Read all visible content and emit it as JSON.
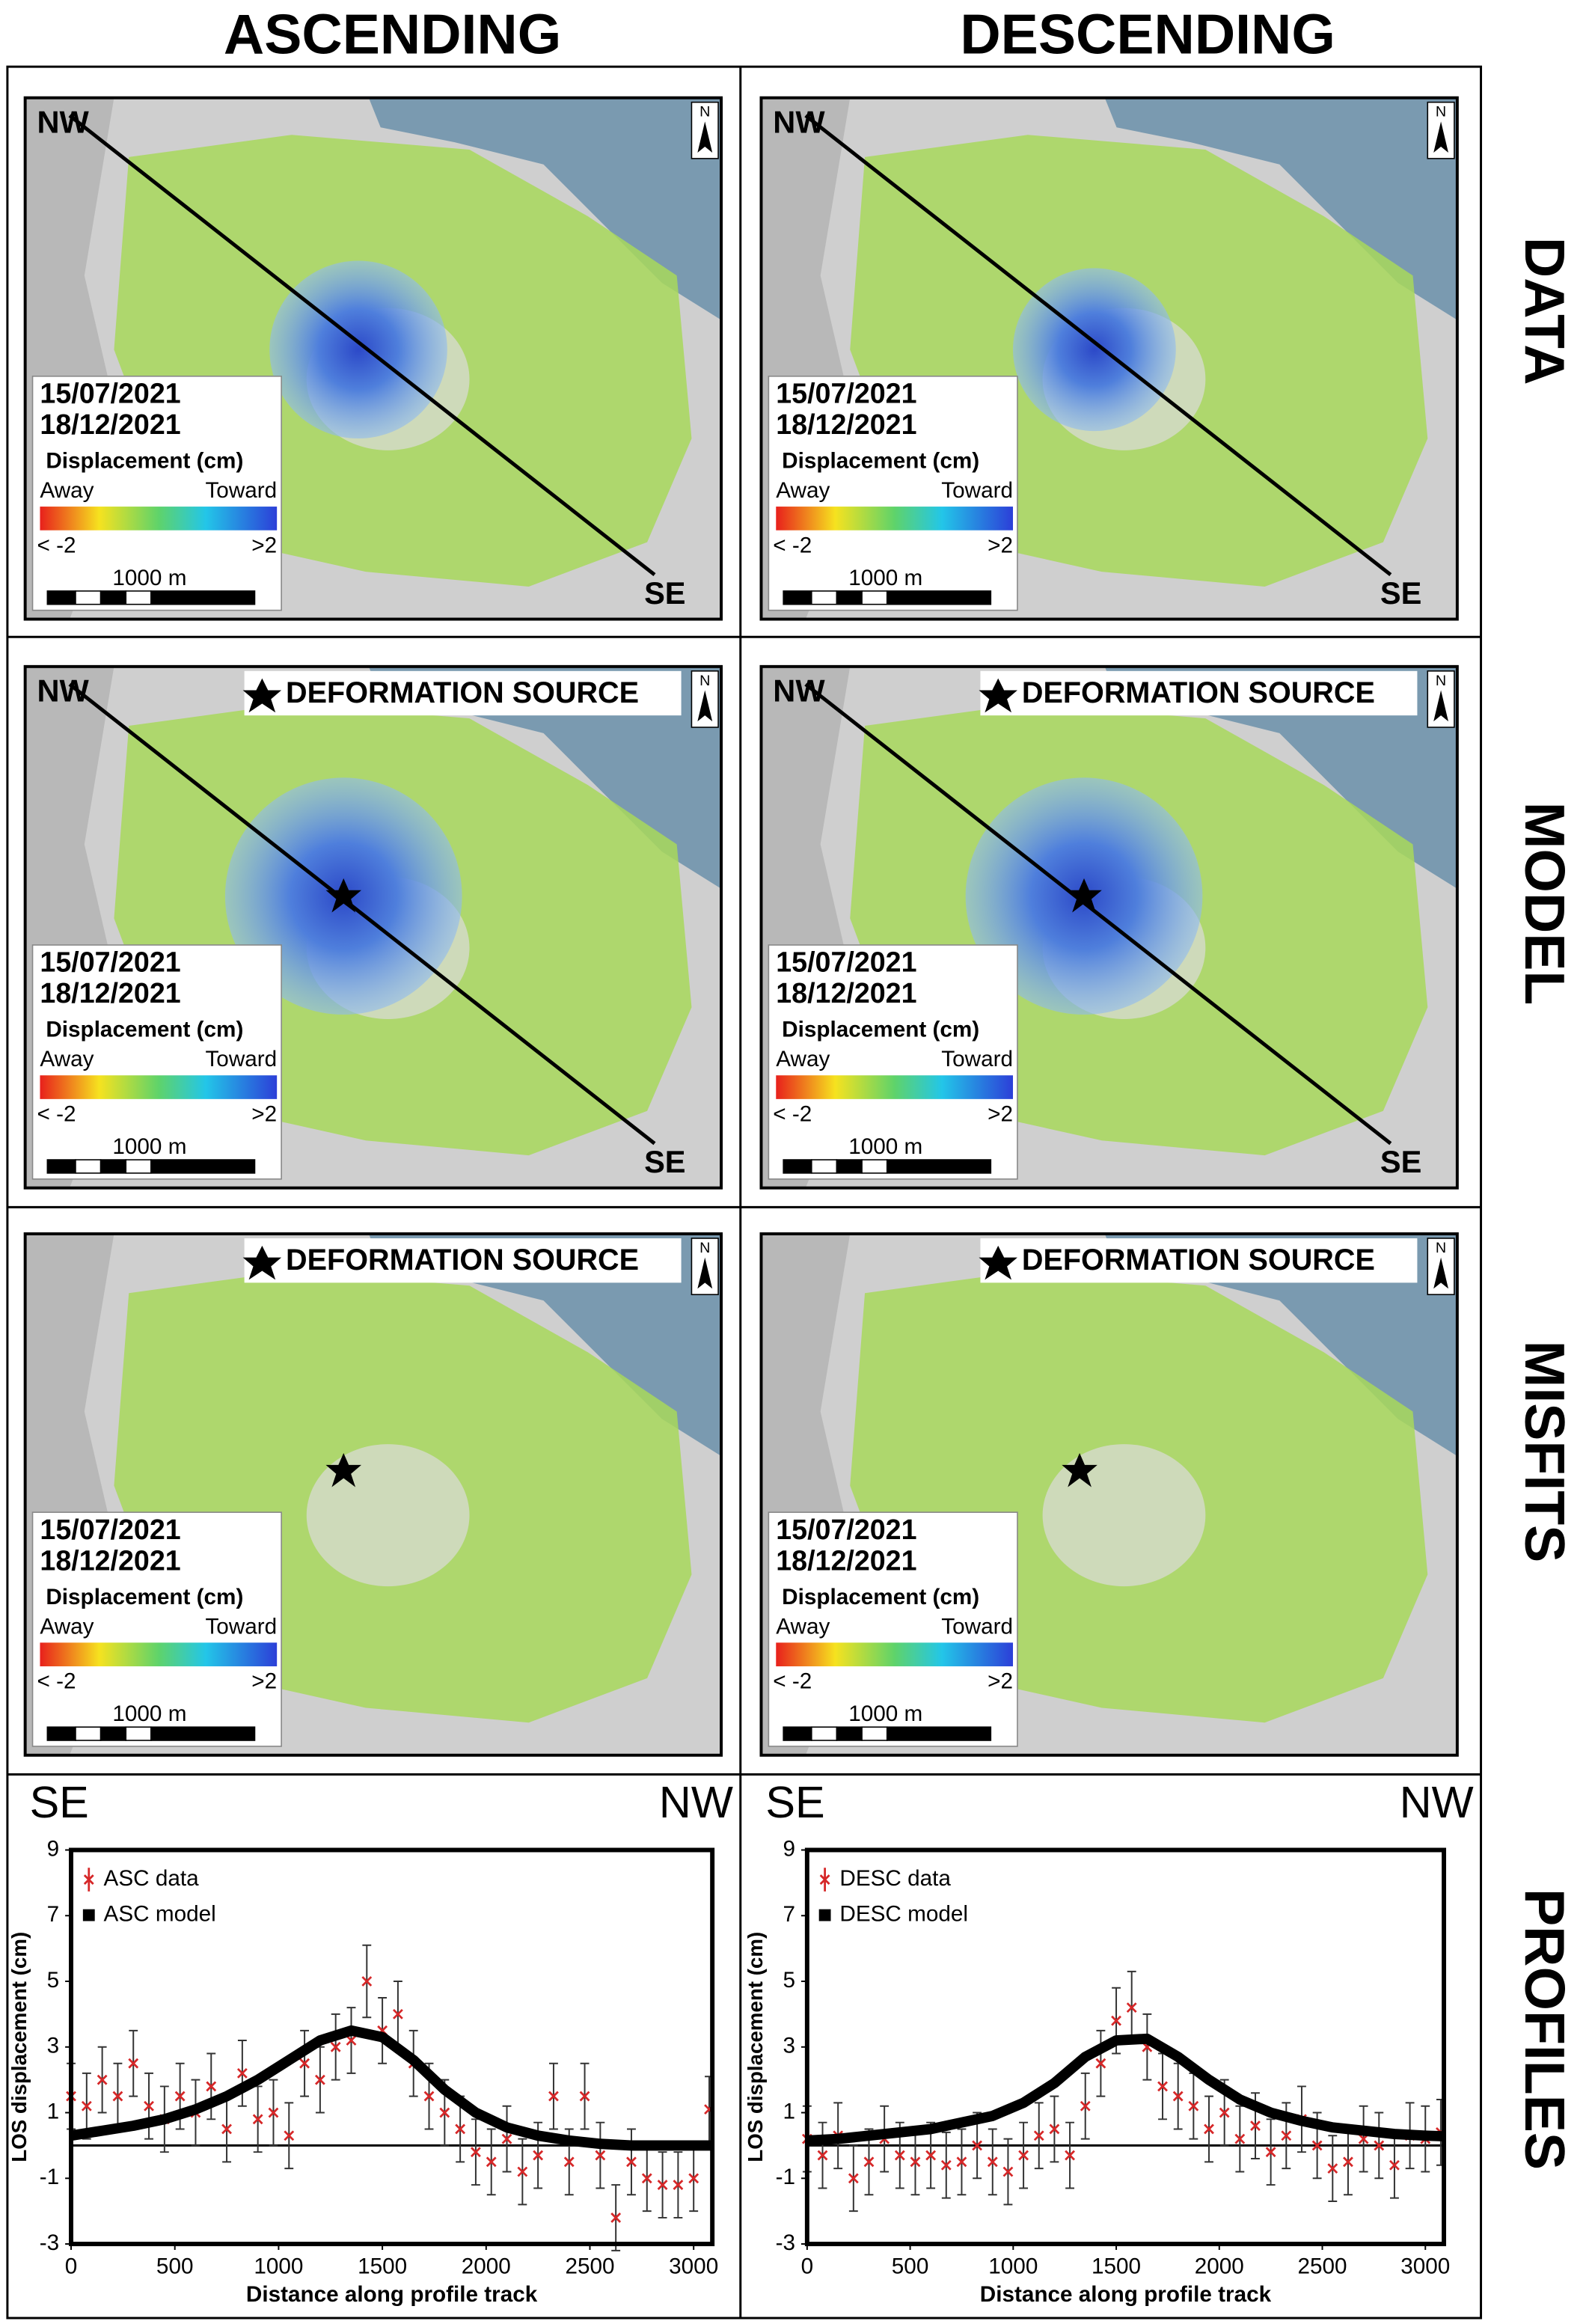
{
  "columns": [
    "ASCENDING",
    "DESCENDING"
  ],
  "rows": [
    "DATA",
    "MODEL",
    "MISFITS",
    "PROFILES"
  ],
  "panels": [
    {
      "start_label": "NW",
      "end_label": "SE",
      "north": "N",
      "date_start": "15/07/2021",
      "date_end": "18/12/2021",
      "legend_title": "Displacement (cm)",
      "away": "Away",
      "toward": "Toward",
      "min_label": "< -2",
      "max_label": ">2",
      "scale_label": "1000 m"
    },
    {
      "start_label": "NW",
      "end_label": "SE",
      "north": "N",
      "date_start": "15/07/2021",
      "date_end": "18/12/2021",
      "legend_title": "Displacement (cm)",
      "away": "Away",
      "toward": "Toward",
      "min_label": "< -2",
      "max_label": ">2",
      "scale_label": "1000 m"
    },
    {
      "start_label": "NW",
      "end_label": "SE",
      "source_label": "DEFORMATION SOURCE",
      "north": "N",
      "date_start": "15/07/2021",
      "date_end": "18/12/2021",
      "legend_title": "Displacement (cm)",
      "away": "Away",
      "toward": "Toward",
      "min_label": "< -2",
      "max_label": ">2",
      "scale_label": "1000 m"
    },
    {
      "start_label": "NW",
      "end_label": "SE",
      "source_label": "DEFORMATION SOURCE",
      "north": "N",
      "date_start": "15/07/2021",
      "date_end": "18/12/2021",
      "legend_title": "Displacement (cm)",
      "away": "Away",
      "toward": "Toward",
      "min_label": "< -2",
      "max_label": ">2",
      "scale_label": "1000 m"
    },
    {
      "source_label": "DEFORMATION SOURCE",
      "north": "N",
      "date_start": "15/07/2021",
      "date_end": "18/12/2021",
      "legend_title": "Displacement (cm)",
      "away": "Away",
      "toward": "Toward",
      "min_label": "< -2",
      "max_label": ">2",
      "scale_label": "1000 m"
    },
    {
      "source_label": "DEFORMATION SOURCE",
      "north": "N",
      "date_start": "15/07/2021",
      "date_end": "18/12/2021",
      "legend_title": "Displacement (cm)",
      "away": "Away",
      "toward": "Toward",
      "min_label": "< -2",
      "max_label": ">2",
      "scale_label": "1000 m"
    }
  ],
  "chart_data": [
    {
      "type": "errorbar",
      "annotations": [
        "SE",
        "NW"
      ],
      "x_label": "Distance along profile track",
      "y_label": "LOS displacement (cm)",
      "xlim": [
        0,
        3090
      ],
      "ylim": [
        -3,
        9
      ],
      "xticks": [
        0,
        500,
        1000,
        1500,
        2000,
        2500,
        3000
      ],
      "yticks": [
        -3,
        -1,
        1,
        3,
        5,
        7,
        9
      ],
      "reference_line": 0,
      "legend": "upper left",
      "series": [
        {
          "name": "ASC data",
          "color": "#d62728",
          "x": [
            0,
            75,
            150,
            225,
            300,
            375,
            450,
            525,
            600,
            675,
            750,
            825,
            900,
            975,
            1050,
            1125,
            1200,
            1275,
            1350,
            1425,
            1500,
            1575,
            1650,
            1725,
            1800,
            1875,
            1950,
            2025,
            2100,
            2175,
            2250,
            2325,
            2400,
            2475,
            2550,
            2625,
            2700,
            2775,
            2850,
            2925,
            3000,
            3075
          ],
          "values": [
            1.5,
            1.2,
            2,
            1.5,
            2.5,
            1.2,
            0.8,
            1.5,
            1,
            1.8,
            0.5,
            2.2,
            0.8,
            1,
            0.3,
            2.5,
            2,
            3,
            3.2,
            5,
            3.5,
            4,
            2.5,
            1.5,
            1,
            0.5,
            -0.2,
            -0.5,
            0.2,
            -0.8,
            -0.3,
            1.5,
            -0.5,
            1.5,
            -0.3,
            -2.2,
            -0.5,
            -1,
            -1.2,
            -1.2,
            -1,
            1.1
          ],
          "errors": [
            1,
            1,
            1,
            1,
            1,
            1,
            1,
            1,
            1,
            1,
            1,
            1,
            1,
            1,
            1,
            1,
            1,
            1,
            1,
            1.1,
            1,
            1,
            1,
            1,
            1,
            1,
            1,
            1,
            1,
            1,
            1,
            1,
            1,
            1,
            1,
            1,
            1,
            1,
            1,
            1,
            1,
            1
          ]
        },
        {
          "name": "ASC model",
          "color": "#000000",
          "x": [
            0,
            150,
            300,
            450,
            600,
            750,
            900,
            1050,
            1200,
            1350,
            1500,
            1650,
            1800,
            1950,
            2100,
            2250,
            2400,
            2550,
            2700,
            2850,
            3000,
            3090
          ],
          "values": [
            0.3,
            0.45,
            0.6,
            0.8,
            1.1,
            1.5,
            2,
            2.6,
            3.2,
            3.5,
            3.3,
            2.6,
            1.7,
            1,
            0.55,
            0.3,
            0.15,
            0.05,
            0,
            0,
            0,
            0
          ]
        }
      ]
    },
    {
      "type": "errorbar",
      "annotations": [
        "SE",
        "NW"
      ],
      "x_label": "Distance along profile track",
      "y_label": "LOS displacement (cm)",
      "xlim": [
        0,
        3090
      ],
      "ylim": [
        -3,
        9
      ],
      "xticks": [
        0,
        500,
        1000,
        1500,
        2000,
        2500,
        3000
      ],
      "yticks": [
        -3,
        -1,
        1,
        3,
        5,
        7,
        9
      ],
      "reference_line": 0,
      "legend": "upper left",
      "series": [
        {
          "name": "DESC data",
          "color": "#d62728",
          "x": [
            0,
            75,
            150,
            225,
            300,
            375,
            450,
            525,
            600,
            675,
            750,
            825,
            900,
            975,
            1050,
            1125,
            1200,
            1275,
            1350,
            1425,
            1500,
            1575,
            1650,
            1725,
            1800,
            1875,
            1950,
            2025,
            2100,
            2175,
            2250,
            2325,
            2400,
            2475,
            2550,
            2625,
            2700,
            2775,
            2850,
            2925,
            3000,
            3075
          ],
          "values": [
            0.2,
            -0.3,
            0.3,
            -1,
            -0.5,
            0.2,
            -0.3,
            -0.5,
            -0.3,
            -0.6,
            -0.5,
            0,
            -0.5,
            -0.8,
            -0.3,
            0.3,
            0.5,
            -0.3,
            1.2,
            2.5,
            3.8,
            4.2,
            3,
            1.8,
            1.5,
            1.2,
            0.5,
            1,
            0.2,
            0.6,
            -0.2,
            0.3,
            0.8,
            0,
            -0.7,
            -0.5,
            0.2,
            0,
            -0.6,
            0.3,
            0.2,
            0.4
          ],
          "errors": [
            1,
            1,
            1,
            1,
            1,
            1,
            1,
            1,
            1,
            1,
            1,
            1,
            1,
            1,
            1,
            1,
            1,
            1,
            1,
            1,
            1,
            1.1,
            1,
            1,
            1,
            1,
            1,
            1,
            1,
            1,
            1,
            1,
            1,
            1,
            1,
            1,
            1,
            1,
            1,
            1,
            1,
            1
          ]
        },
        {
          "name": "DESC model",
          "color": "#000000",
          "x": [
            0,
            150,
            300,
            450,
            600,
            750,
            900,
            1050,
            1200,
            1350,
            1500,
            1650,
            1800,
            1950,
            2100,
            2250,
            2400,
            2550,
            2700,
            2850,
            3000,
            3090
          ],
          "values": [
            0.15,
            0.2,
            0.3,
            0.4,
            0.5,
            0.7,
            0.9,
            1.3,
            1.9,
            2.7,
            3.2,
            3.25,
            2.7,
            2,
            1.4,
            1,
            0.75,
            0.55,
            0.45,
            0.35,
            0.3,
            0.28
          ]
        }
      ]
    }
  ]
}
